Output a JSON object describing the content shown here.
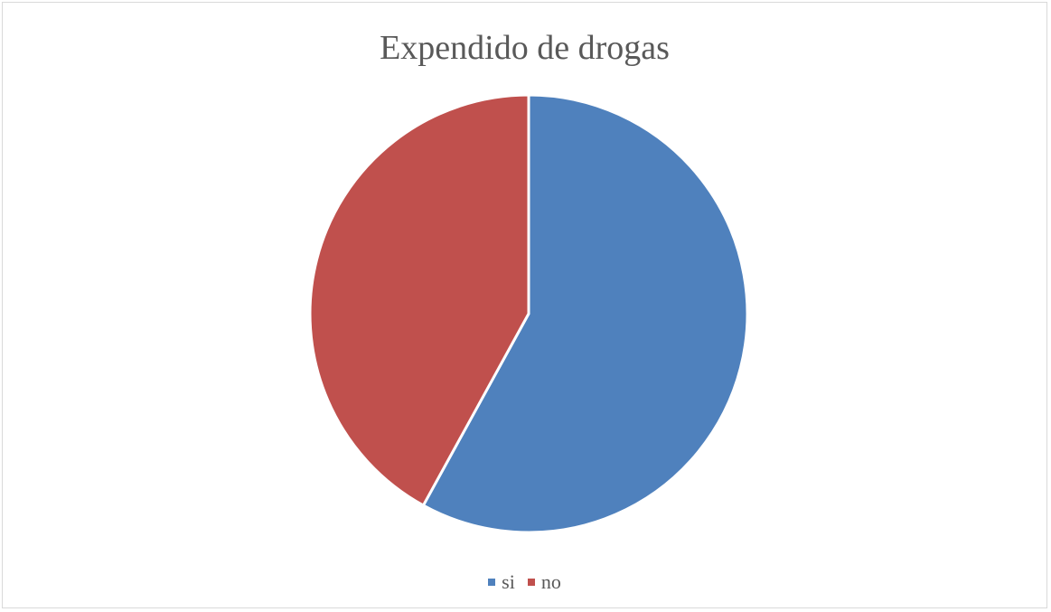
{
  "chart_data": {
    "type": "pie",
    "title": "Expendido de drogas",
    "categories": [
      "si",
      "no"
    ],
    "values": [
      58,
      42
    ],
    "colors": [
      "#4f81bd",
      "#c0504d"
    ],
    "legend_position": "bottom"
  }
}
